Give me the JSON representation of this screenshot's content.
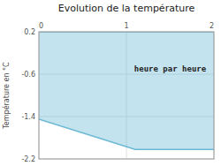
{
  "chart_data": {
    "type": "area",
    "title": "Evolution de la température",
    "y_label": "Température en °C",
    "x": [
      0,
      1.1,
      2.0
    ],
    "values": [
      -1.45,
      -2.02,
      -2.02
    ],
    "baseline": 0.2,
    "color": "#6ab8d4",
    "xlim": [
      0,
      2
    ],
    "ylim": [
      -2.2,
      0.2
    ],
    "xticks": [
      0,
      1,
      2
    ],
    "yticks": [
      0.2,
      -0.6,
      -1.4,
      -2.2
    ],
    "grid": true,
    "annotations": [
      {
        "text": "heure par heure",
        "x": 1.5,
        "y": -0.5
      }
    ]
  }
}
